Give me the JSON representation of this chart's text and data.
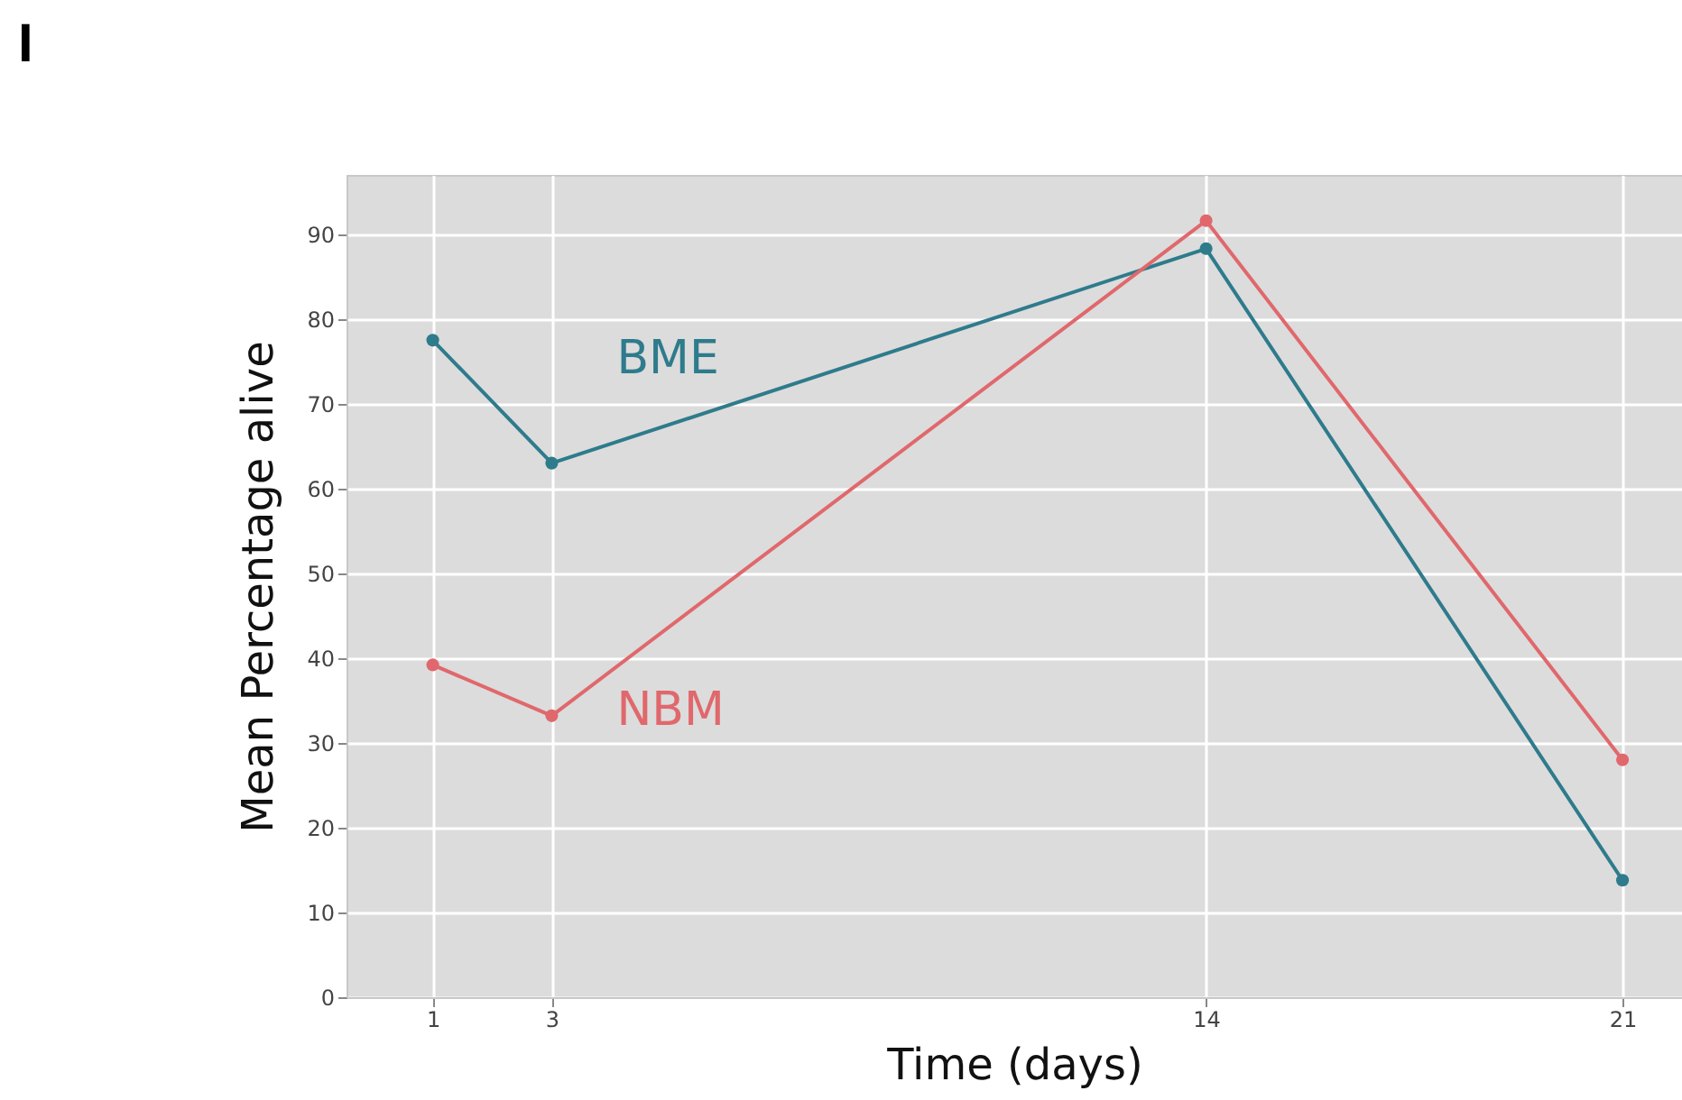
{
  "chart_data": {
    "type": "line",
    "xlabel": "Time (days)",
    "ylabel": "Mean Percentage alive",
    "annotations": [
      "I"
    ],
    "x": [
      1,
      3,
      14,
      21
    ],
    "series": [
      {
        "name": "BME",
        "color": "#2e7b8c",
        "values": [
          77.5,
          63,
          88.3,
          13.8
        ]
      },
      {
        "name": "NBM",
        "color": "#e0686c",
        "values": [
          39.2,
          33.2,
          91.6,
          28
        ]
      }
    ],
    "xlim": [
      -0.45,
      22
    ],
    "xticks": [
      1,
      3,
      14,
      21
    ],
    "ylim": [
      0,
      97
    ],
    "yticks": [
      0,
      10,
      20,
      30,
      40,
      50,
      60,
      70,
      80,
      90
    ],
    "grid": true,
    "legend": false,
    "marker": "circle",
    "line_style": "solid"
  }
}
